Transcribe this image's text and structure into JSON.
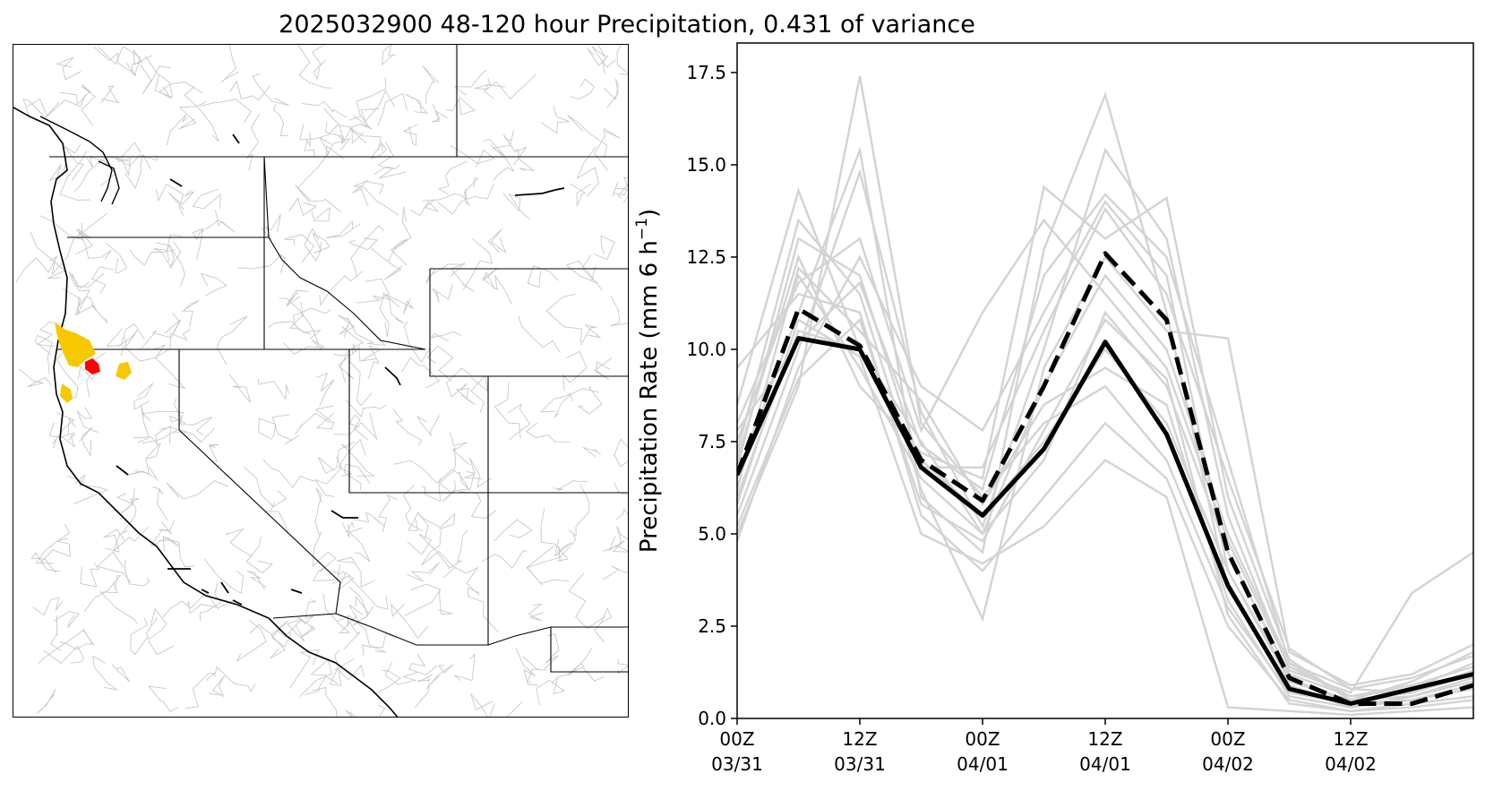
{
  "figure": {
    "title": "2025032900 48-120 hour Precipitation, 0.431 of variance"
  },
  "map": {
    "colors": {
      "border": "#000000",
      "basins": "#c8c8c8",
      "highlight_primary": "#ff0000",
      "highlight_secondary": "#f5c800"
    }
  },
  "chart_data": {
    "type": "line",
    "title": "",
    "xlabel": "",
    "ylabel": "Precipitation Rate (mm 6 h",
    "ylabel_sup": "−1",
    "ylabel_end": ")",
    "ylim": [
      0,
      18.3
    ],
    "xlim": [
      "2025-03-31T00Z",
      "2025-04-03T00Z"
    ],
    "grid": false,
    "yticks": [
      0.0,
      2.5,
      5.0,
      7.5,
      10.0,
      12.5,
      15.0,
      17.5
    ],
    "ytick_labels": [
      "0.0",
      "2.5",
      "5.0",
      "7.5",
      "10.0",
      "12.5",
      "15.0",
      "17.5"
    ],
    "xticks": [
      "2025-03-31T00Z",
      "2025-03-31T12Z",
      "2025-04-01T00Z",
      "2025-04-01T12Z",
      "2025-04-02T00Z",
      "2025-04-02T12Z"
    ],
    "xtick_labels": [
      [
        "00Z",
        "03/31"
      ],
      [
        "12Z",
        "03/31"
      ],
      [
        "00Z",
        "04/01"
      ],
      [
        "12Z",
        "04/01"
      ],
      [
        "00Z",
        "04/02"
      ],
      [
        "12Z",
        "04/02"
      ]
    ],
    "x": [
      "2025-03-31T00Z",
      "2025-03-31T06Z",
      "2025-03-31T12Z",
      "2025-03-31T18Z",
      "2025-04-01T00Z",
      "2025-04-01T06Z",
      "2025-04-01T12Z",
      "2025-04-01T18Z",
      "2025-04-02T00Z",
      "2025-04-02T06Z",
      "2025-04-02T12Z",
      "2025-04-02T18Z",
      "2025-04-03T00Z"
    ],
    "series": [
      {
        "style": "solid-bold",
        "color": "#000000",
        "values": [
          6.6,
          10.3,
          10.0,
          6.8,
          5.5,
          7.3,
          10.2,
          7.7,
          3.6,
          0.8,
          0.4,
          0.8,
          1.2
        ]
      },
      {
        "style": "dashed-bold",
        "color": "#000000",
        "values": [
          6.6,
          11.1,
          10.1,
          7.0,
          5.9,
          9.0,
          12.6,
          10.8,
          4.5,
          1.1,
          0.4,
          0.4,
          0.9
        ]
      },
      {
        "style": "ensemble",
        "color": "#d3d3d3",
        "values": [
          [
            6.0,
            10.5,
            10.0,
            7.0,
            5.5,
            7.5,
            10.0,
            8.0,
            4.0,
            1.0,
            0.5,
            0.6,
            1.0
          ],
          [
            7.5,
            12.0,
            9.5,
            6.5,
            5.0,
            9.0,
            12.0,
            10.0,
            5.0,
            1.5,
            0.8,
            0.7,
            1.3
          ],
          [
            5.0,
            9.0,
            17.4,
            8.0,
            6.0,
            8.0,
            9.0,
            7.0,
            3.0,
            0.7,
            0.4,
            0.5,
            0.8
          ],
          [
            8.5,
            14.3,
            10.0,
            7.5,
            5.0,
            7.0,
            11.0,
            9.0,
            4.5,
            1.2,
            0.6,
            0.8,
            1.5
          ],
          [
            6.5,
            11.0,
            15.4,
            6.0,
            4.5,
            12.7,
            16.9,
            11.0,
            3.5,
            0.9,
            0.3,
            0.6,
            1.1
          ],
          [
            7.0,
            12.5,
            9.0,
            7.2,
            6.5,
            14.4,
            13.0,
            14.1,
            6.0,
            1.6,
            0.5,
            1.0,
            1.8
          ],
          [
            5.5,
            10.0,
            14.8,
            8.3,
            5.2,
            10.0,
            15.4,
            13.0,
            5.5,
            1.3,
            0.7,
            3.4,
            4.5
          ],
          [
            9.5,
            11.5,
            11.0,
            5.5,
            4.0,
            6.0,
            8.0,
            6.5,
            2.5,
            0.5,
            0.2,
            0.4,
            0.6
          ],
          [
            4.8,
            9.5,
            12.5,
            9.0,
            7.8,
            11.0,
            14.0,
            12.0,
            4.0,
            1.1,
            0.4,
            0.5,
            0.9
          ],
          [
            7.2,
            13.5,
            11.5,
            6.2,
            2.7,
            9.5,
            12.5,
            10.5,
            10.3,
            1.8,
            0.9,
            1.2,
            2.0
          ],
          [
            6.2,
            12.2,
            10.5,
            8.6,
            5.8,
            8.5,
            9.5,
            8.5,
            3.2,
            0.6,
            0.3,
            0.5,
            0.9
          ],
          [
            8.0,
            11.8,
            13.0,
            7.8,
            11.0,
            13.5,
            11.5,
            9.5,
            4.8,
            1.4,
            0.6,
            0.9,
            1.4
          ],
          [
            5.8,
            10.8,
            9.8,
            5.0,
            4.2,
            5.2,
            7.0,
            6.0,
            0.3,
            0.2,
            0.1,
            0.2,
            0.3
          ],
          [
            6.8,
            13.0,
            12.0,
            6.8,
            6.8,
            10.5,
            13.8,
            11.5,
            6.5,
            1.9,
            0.8,
            1.1,
            1.7
          ],
          [
            7.8,
            10.2,
            11.8,
            7.4,
            6.2,
            12.0,
            14.2,
            12.5,
            7.0,
            1.5,
            0.5,
            0.7,
            1.2
          ],
          [
            5.2,
            9.2,
            10.8,
            5.8,
            4.8,
            7.8,
            10.8,
            9.2,
            2.8,
            0.4,
            0.2,
            0.3,
            0.5
          ]
        ]
      }
    ]
  }
}
